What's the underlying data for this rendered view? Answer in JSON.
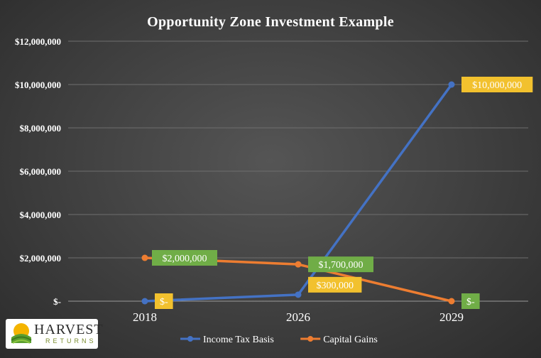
{
  "chart_data": {
    "type": "line",
    "title": "Opportunity Zone Investment Example",
    "categories": [
      "2018",
      "2026",
      "2029"
    ],
    "y_ticks": [
      "$12,000,000",
      "$10,000,000",
      "$8,000,000",
      "$6,000,000",
      "$4,000,000",
      "$2,000,000",
      "$-"
    ],
    "ylim": [
      0,
      12000000
    ],
    "grid": true,
    "legend_position": "bottom",
    "series": [
      {
        "name": "Income Tax Basis",
        "color": "#4472c4",
        "values": [
          0,
          300000,
          10000000
        ],
        "labels": [
          "$-",
          "$300,000",
          "$10,000,000"
        ],
        "label_color": "#f2c12e"
      },
      {
        "name": "Capital Gains",
        "color": "#ed7d31",
        "values": [
          2000000,
          1700000,
          0
        ],
        "labels": [
          "$2,000,000",
          "$1,700,000",
          "$-"
        ],
        "label_color": "#70ad47"
      }
    ]
  },
  "logo": {
    "name": "HARVEST",
    "sub": "RETURNS"
  }
}
